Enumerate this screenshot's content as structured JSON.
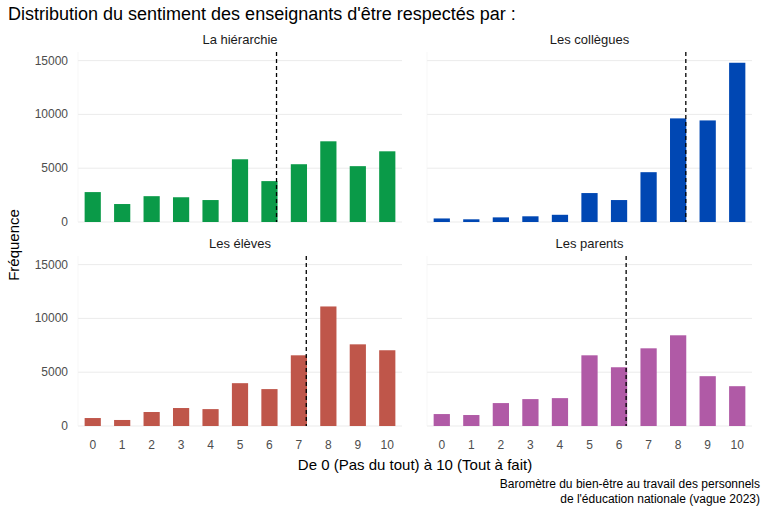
{
  "title": "Distribution du sentiment des enseignants d'être respectés par :",
  "x_label": "De 0 (Pas du tout) à 10 (Tout à fait)",
  "y_label": "Fréquence",
  "caption": [
    "Baromètre du bien-être au travail des personnels",
    "de l'éducation nationale (vague 2023)"
  ],
  "chart_data": [
    {
      "type": "bar",
      "title": "La hiérarchie",
      "categories": [
        0,
        1,
        2,
        3,
        4,
        5,
        6,
        7,
        8,
        9,
        10
      ],
      "values": [
        2780,
        1670,
        2400,
        2300,
        2040,
        5830,
        3800,
        5370,
        7500,
        5190,
        6570
      ],
      "color": "#0a9a48",
      "mean": 6.24,
      "ylim": [
        0,
        15800
      ],
      "yticks": [
        0,
        5000,
        10000,
        15000
      ],
      "grid": true,
      "tick_labels": "y"
    },
    {
      "type": "bar",
      "title": "Les collègues",
      "categories": [
        0,
        1,
        2,
        3,
        4,
        5,
        6,
        7,
        8,
        9,
        10
      ],
      "values": [
        330,
        250,
        430,
        530,
        670,
        2690,
        2040,
        4630,
        9630,
        9440,
        14800
      ],
      "color": "#0047b3",
      "mean": 8.26,
      "ylim": [
        0,
        15800
      ],
      "yticks": [
        0,
        5000,
        10000,
        15000
      ],
      "grid": true,
      "tick_labels": false
    },
    {
      "type": "bar",
      "title": "Les élèves",
      "categories": [
        0,
        1,
        2,
        3,
        4,
        5,
        6,
        7,
        8,
        9,
        10
      ],
      "values": [
        740,
        560,
        1300,
        1670,
        1570,
        3980,
        3430,
        6570,
        11110,
        7590,
        7040
      ],
      "color": "#bf564a",
      "mean": 7.25,
      "ylim": [
        0,
        15800
      ],
      "yticks": [
        0,
        5000,
        10000,
        15000
      ],
      "grid": true
    },
    {
      "type": "bar",
      "title": "Les parents",
      "categories": [
        0,
        1,
        2,
        3,
        4,
        5,
        6,
        7,
        8,
        9,
        10
      ],
      "values": [
        1110,
        1020,
        2130,
        2500,
        2590,
        6570,
        5460,
        7220,
        8430,
        4630,
        3700
      ],
      "color": "#b05aa6",
      "mean": 6.24,
      "ylim": [
        0,
        15800
      ],
      "yticks": [
        0,
        5000,
        10000,
        15000
      ],
      "grid": true,
      "tick_labels": "x"
    }
  ]
}
